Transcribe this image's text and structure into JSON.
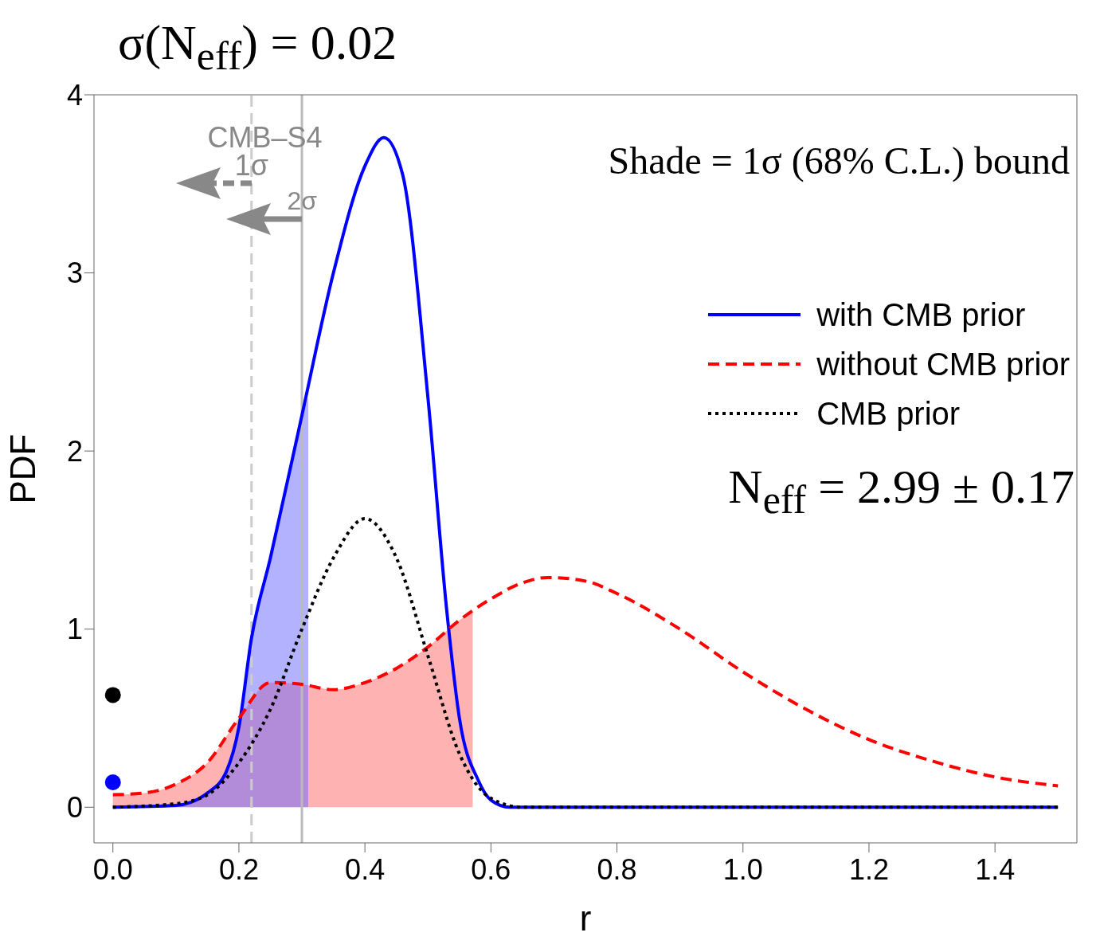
{
  "chart_data": {
    "type": "line",
    "title": "σ(N$_{eff}$) = 0.02",
    "xlabel": "r",
    "ylabel": "PDF",
    "xlim": [
      -0.03,
      1.53
    ],
    "ylim": [
      -0.2,
      4
    ],
    "xticks": [
      {
        "value": 0,
        "label": "0.0"
      },
      {
        "value": 0.2,
        "label": "0.2"
      },
      {
        "value": 0.4,
        "label": "0.4"
      },
      {
        "value": 0.6,
        "label": "0.6"
      },
      {
        "value": 0.8,
        "label": "0.8"
      },
      {
        "value": 1,
        "label": "1.0"
      },
      {
        "value": 1.2,
        "label": "1.2"
      },
      {
        "value": 1.4,
        "label": "1.4"
      }
    ],
    "yticks": [
      0,
      1,
      2,
      3,
      4
    ],
    "grid": false,
    "legend": "right",
    "series": [
      {
        "type": "area",
        "color": "#ff6666",
        "x": [
          0,
          0.05,
          0.1,
          0.15,
          0.2,
          0.25,
          0.3,
          0.35,
          0.4,
          0.45,
          0.5,
          0.55,
          0.571
        ],
        "values": [
          0.07,
          0.08,
          0.13,
          0.25,
          0.5,
          0.7,
          0.69,
          0.66,
          0.7,
          0.78,
          0.9,
          1.05,
          1.1
        ]
      },
      {
        "type": "area",
        "color": "#6666ff",
        "x": [
          0,
          0.1,
          0.15,
          0.18,
          0.2,
          0.22,
          0.25,
          0.3,
          0.31
        ],
        "values": [
          0,
          0.01,
          0.08,
          0.2,
          0.45,
          0.95,
          1.4,
          2.2,
          2.3
        ]
      },
      {
        "name": "with CMB prior",
        "line_style": "solid",
        "color": "#0000ff",
        "x": [
          0,
          0.1,
          0.15,
          0.18,
          0.2,
          0.22,
          0.25,
          0.3,
          0.35,
          0.4,
          0.43,
          0.46,
          0.5,
          0.53,
          0.55,
          0.58,
          0.6,
          0.63,
          1.5
        ],
        "values": [
          0,
          0.01,
          0.08,
          0.2,
          0.45,
          0.95,
          1.4,
          2.2,
          3,
          3.6,
          3.76,
          3.55,
          2.3,
          1.1,
          0.5,
          0.15,
          0.04,
          0,
          0
        ]
      },
      {
        "name": "without CMB prior",
        "line_style": "dashed",
        "color": "#ff0000",
        "x": [
          0,
          0.05,
          0.1,
          0.15,
          0.2,
          0.25,
          0.3,
          0.35,
          0.4,
          0.45,
          0.5,
          0.55,
          0.6,
          0.65,
          0.69,
          0.75,
          0.8,
          0.9,
          1,
          1.1,
          1.2,
          1.3,
          1.4,
          1.5
        ],
        "values": [
          0.07,
          0.08,
          0.13,
          0.25,
          0.5,
          0.7,
          0.69,
          0.66,
          0.7,
          0.78,
          0.9,
          1.05,
          1.17,
          1.26,
          1.29,
          1.27,
          1.2,
          1,
          0.76,
          0.55,
          0.38,
          0.26,
          0.17,
          0.12
        ]
      },
      {
        "name": "CMB prior",
        "line_style": "dotted",
        "color": "#000000",
        "x": [
          0,
          0.1,
          0.15,
          0.2,
          0.25,
          0.3,
          0.35,
          0.4,
          0.45,
          0.5,
          0.55,
          0.6,
          0.65,
          1.5
        ],
        "values": [
          0,
          0.02,
          0.07,
          0.25,
          0.55,
          1,
          1.4,
          1.62,
          1.4,
          0.85,
          0.3,
          0.05,
          0,
          0
        ]
      },
      {
        "type": "scatter",
        "marker": "circle",
        "color": "#0000ff",
        "x": [
          0
        ],
        "values": [
          0.14
        ]
      },
      {
        "type": "scatter",
        "marker": "circle",
        "color": "#000000",
        "x": [
          0
        ],
        "values": [
          0.63
        ]
      }
    ],
    "ref_lines": [
      {
        "axis": "x",
        "value": 0.22,
        "color": "#cccccc",
        "line_style": "dashed"
      },
      {
        "axis": "x",
        "value": 0.3,
        "color": "#bbbbbb",
        "line_style": "solid"
      }
    ],
    "annotations": [
      "CMB–S4",
      {
        "text": "1σ",
        "x": 0.22,
        "y": 3.6
      },
      {
        "text": "2σ",
        "x": 0.3,
        "y": 3.4
      },
      "Shade = 1σ (68% C.L.) bound",
      "N$_{eff}$ = 2.99 ± 0.17"
    ]
  }
}
